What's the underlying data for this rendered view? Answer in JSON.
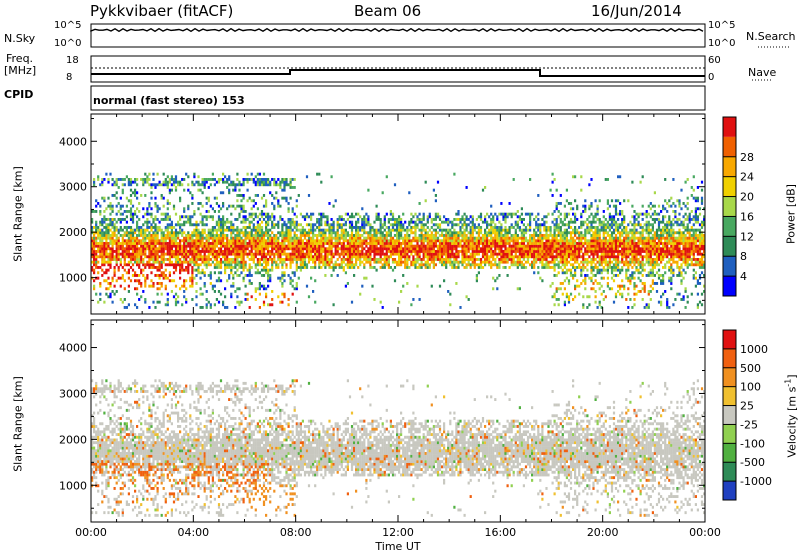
{
  "header": {
    "station": "Pykkvibaer (fitACF)",
    "beam": "Beam 06",
    "date": "16/Jun/2014"
  },
  "strip_nsky": {
    "left_label": "N.Sky",
    "left_ticks": [
      "10^5",
      "10^0"
    ],
    "right_label": "N.Search",
    "right_ticks": [
      "10^5",
      "10^0"
    ]
  },
  "strip_freq": {
    "left_label_1": "Freq.",
    "left_label_2": "[MHz]",
    "left_ticks": [
      "18",
      "8"
    ],
    "right_label": "Nave",
    "right_ticks": [
      "60",
      "0"
    ]
  },
  "cpid": {
    "label": "CPID",
    "value": "normal (fast stereo) 153"
  },
  "chart_data": [
    {
      "type": "heatmap",
      "name": "power-panel",
      "ylabel": "Slant Range [km]",
      "yticks": [
        1000,
        2000,
        3000,
        4000
      ],
      "ylim": [
        200,
        4600
      ],
      "xlim": [
        0,
        24
      ],
      "colorbar": {
        "label": "Power [dB]",
        "ticks": [
          "4",
          "8",
          "12",
          "16",
          "20",
          "24",
          "28"
        ],
        "colors": [
          "#0000ff",
          "#1f5fbf",
          "#2e8b57",
          "#48a860",
          "#a8d84a",
          "#f0d000",
          "#f8a800",
          "#f06000",
          "#e01010"
        ]
      }
    },
    {
      "type": "heatmap",
      "name": "velocity-panel",
      "ylabel": "Slant Range [km]",
      "yticks": [
        1000,
        2000,
        3000,
        4000
      ],
      "ylim": [
        200,
        4600
      ],
      "xlim": [
        0,
        24
      ],
      "colorbar": {
        "label": "Velocity [m s",
        "label_sup": "-1",
        "label_close": "]",
        "ticks": [
          "1000",
          "500",
          "100",
          "25",
          "-25",
          "-100",
          "-500",
          "-1000"
        ],
        "colors": [
          "#2040c0",
          "#2e8b57",
          "#50b040",
          "#90d050",
          "#c8c8c0",
          "#f0c030",
          "#f09020",
          "#f06010",
          "#e01010"
        ]
      }
    }
  ],
  "x_axis": {
    "ticks": [
      "00:00",
      "04:00",
      "08:00",
      "12:00",
      "16:00",
      "20:00",
      "00:00"
    ],
    "label": "Time UT"
  }
}
